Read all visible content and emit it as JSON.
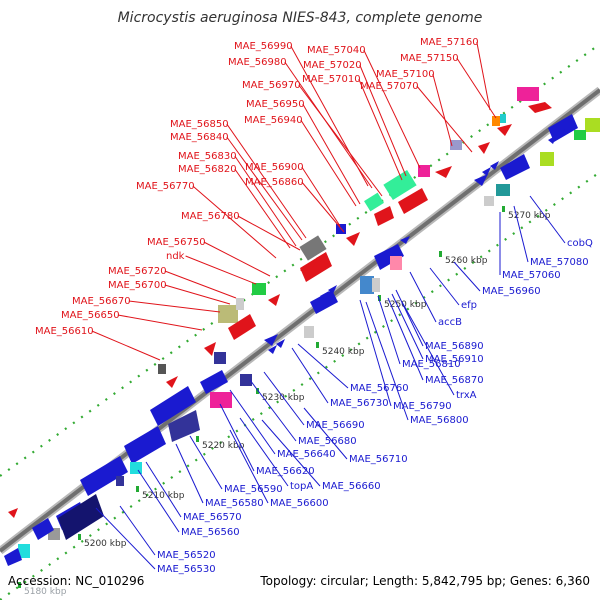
{
  "header": {
    "title": "Microcystis aeruginosa NIES-843, complete genome"
  },
  "footer": {
    "accession": "Accession: NC_010296",
    "summary": "Topology: circular; Length: 5,842,795 bp; Genes: 6,360"
  },
  "colors": {
    "forward_label": "#e0141b",
    "reverse_label": "#1a1ad0",
    "backbone": "#777777",
    "tick": "#22aa33",
    "tick_label": "#333333"
  },
  "ticks": [
    "5180 kbp",
    "5200 kbp",
    "5210 kbp",
    "5220 kbp",
    "5230 kbp",
    "5240 kbp",
    "5250 kbp",
    "5260 kbp",
    "5270 kbp"
  ],
  "forward_labels": [
    "MAE_56990",
    "MAE_57040",
    "MAE_57160",
    "MAE_56980",
    "MAE_57020",
    "MAE_57150",
    "MAE_57010",
    "MAE_57100",
    "MAE_56970",
    "MAE_57070",
    "MAE_56950",
    "MAE_56940",
    "MAE_56850",
    "MAE_56840",
    "MAE_56830",
    "MAE_56900",
    "MAE_56820",
    "MAE_56860",
    "MAE_56770",
    "MAE_56780",
    "MAE_56750",
    "ndk",
    "MAE_56720",
    "MAE_56700",
    "MAE_56670",
    "MAE_56650",
    "MAE_56610"
  ],
  "reverse_labels": [
    "cobQ",
    "MAE_57080",
    "MAE_57060",
    "MAE_56960",
    "efp",
    "accB",
    "MAE_56890",
    "MAE_56910",
    "MAE_56810",
    "MAE_56870",
    "trxA",
    "MAE_56760",
    "MAE_56730",
    "MAE_56790",
    "MAE_56800",
    "MAE_56690",
    "MAE_56680",
    "MAE_56710",
    "MAE_56640",
    "MAE_56620",
    "topA",
    "MAE_56660",
    "MAE_56590",
    "MAE_56580",
    "MAE_56600",
    "MAE_56570",
    "MAE_56560",
    "MAE_56520",
    "MAE_56530"
  ]
}
